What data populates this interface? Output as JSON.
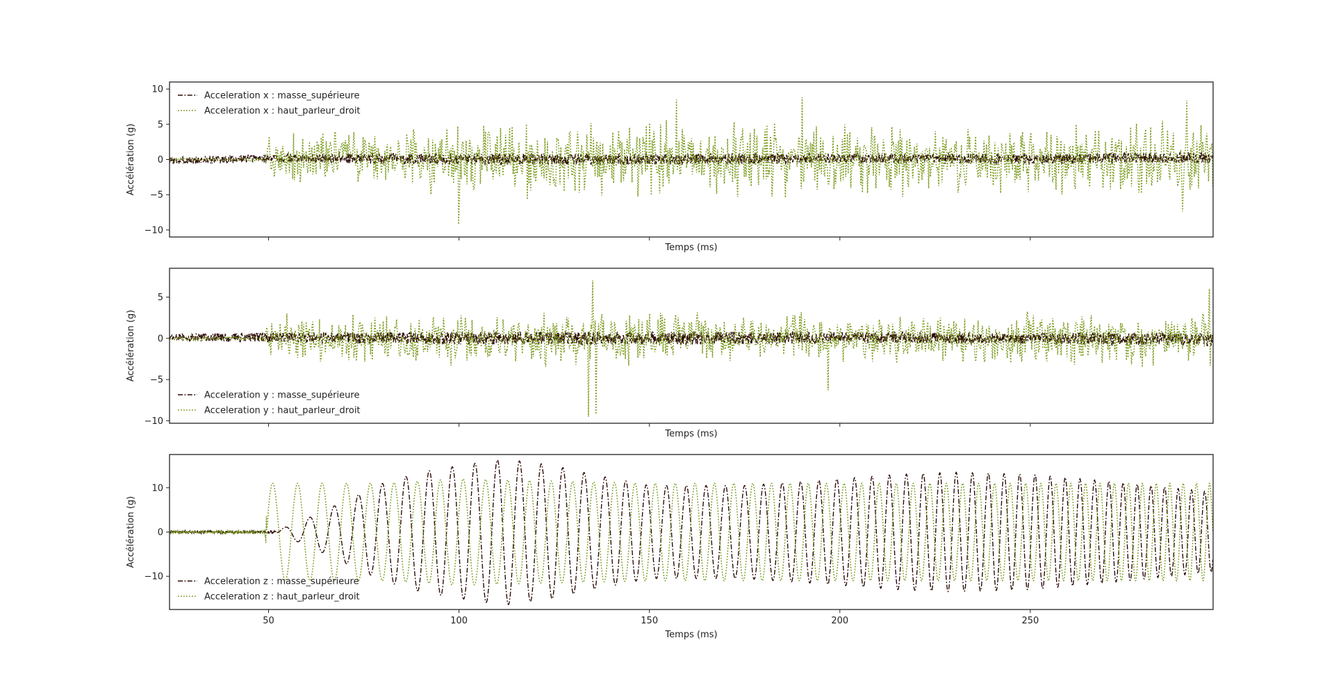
{
  "figure": {
    "background": "#ffffff",
    "axes_color": "#222222"
  },
  "series_styles": {
    "masse": {
      "color": "#2b0a05",
      "dash": "dash-dot"
    },
    "haut_parleur": {
      "color": "#7a9a1c",
      "dash": "dotted"
    }
  },
  "chart_data": [
    {
      "type": "line",
      "xlabel": "Temps (ms)",
      "ylabel": "Accélération (g)",
      "xlim": [
        24,
        298
      ],
      "ylim": [
        -11,
        11
      ],
      "yticks": [
        -10,
        -5,
        0,
        5,
        10
      ],
      "xticks": [
        50,
        100,
        150,
        200,
        250
      ],
      "show_xtick_labels": false,
      "legend_position": "top-left",
      "series": [
        {
          "name": "Acceleration x : masse_supérieure",
          "style": "masse",
          "x": [
            24,
            50,
            100,
            150,
            200,
            250,
            298
          ],
          "values": [
            -0.2,
            0.2,
            0.1,
            0.0,
            0.2,
            0.1,
            0.3
          ],
          "amplitude_envelope": [
            0.5,
            0.6,
            0.8,
            0.8,
            0.7,
            0.7,
            0.8
          ]
        },
        {
          "name": "Acceleration x : haut_parleur_droit",
          "style": "haut_parleur",
          "x": [
            24,
            49,
            50,
            100,
            150,
            200,
            250,
            298
          ],
          "values": [
            0,
            0,
            0,
            0,
            0,
            0,
            0,
            0
          ],
          "amplitude_envelope": [
            0.3,
            0.3,
            4.5,
            6.0,
            6.0,
            5.5,
            5.5,
            6.5
          ],
          "peaks": [
            {
              "x": 100,
              "y": -9.2
            },
            {
              "x": 157,
              "y": 8.5
            },
            {
              "x": 190,
              "y": 8.8
            },
            {
              "x": 291,
              "y": 8.4
            },
            {
              "x": 290,
              "y": -7.4
            }
          ]
        }
      ]
    },
    {
      "type": "line",
      "xlabel": "Temps (ms)",
      "ylabel": "Accélération (g)",
      "xlim": [
        24,
        298
      ],
      "ylim": [
        -10.3,
        8.5
      ],
      "yticks": [
        -10,
        -5,
        0,
        5
      ],
      "xticks": [
        50,
        100,
        150,
        200,
        250
      ],
      "show_xtick_labels": false,
      "legend_position": "bottom-left",
      "series": [
        {
          "name": "Acceleration y : masse_supérieure",
          "style": "masse",
          "x": [
            24,
            50,
            100,
            150,
            200,
            250,
            298
          ],
          "values": [
            0.1,
            0.1,
            0.0,
            0.0,
            0.1,
            0.0,
            -0.1
          ],
          "amplitude_envelope": [
            0.4,
            0.6,
            0.8,
            0.8,
            0.7,
            0.7,
            0.8
          ]
        },
        {
          "name": "Acceleration y : haut_parleur_droit",
          "style": "haut_parleur",
          "x": [
            24,
            49,
            50,
            100,
            150,
            200,
            250,
            298
          ],
          "values": [
            0,
            0,
            0,
            0,
            0,
            0,
            0,
            0
          ],
          "amplitude_envelope": [
            0.3,
            0.3,
            3.0,
            3.6,
            3.6,
            3.4,
            3.4,
            3.6
          ],
          "peaks": [
            {
              "x": 135,
              "y": 7.0
            },
            {
              "x": 134,
              "y": -9.5
            },
            {
              "x": 136,
              "y": -9.2
            },
            {
              "x": 297,
              "y": 6.0
            },
            {
              "x": 197,
              "y": -6.3
            }
          ]
        }
      ]
    },
    {
      "type": "line",
      "xlabel": "Temps (ms)",
      "ylabel": "Accélération (g)",
      "xlim": [
        24,
        298
      ],
      "ylim": [
        -17.5,
        17.5
      ],
      "yticks": [
        -10,
        0,
        10
      ],
      "xticks": [
        50,
        100,
        150,
        200,
        250
      ],
      "xtick_labels": [
        "50",
        "100",
        "150",
        "200",
        "250"
      ],
      "show_xtick_labels": true,
      "legend_position": "bottom-left",
      "series": [
        {
          "name": "Acceleration z : masse_supérieure",
          "style": "masse",
          "oscillation": {
            "onset": 52,
            "start_period_ms": 6.6,
            "end_period_ms": 3.4,
            "amplitude_x": [
              24,
              52,
              60,
              70,
              80,
              90,
              100,
              112,
              125,
              135,
              150,
              175,
              200,
              215,
              230,
              250,
              270,
              298
            ],
            "amplitude": [
              0.3,
              0.3,
              3,
              7,
              11,
              13.5,
              15,
              16.5,
              15,
              13,
              10.5,
              10.5,
              12,
              13,
              13.5,
              13,
              11.5,
              9
            ]
          }
        },
        {
          "name": "Acceleration z : haut_parleur_droit",
          "style": "haut_parleur",
          "oscillation": {
            "onset": 49.5,
            "start_period_ms": 6.6,
            "end_period_ms": 3.4,
            "amplitude_x": [
              24,
              49,
              50,
              60,
              80,
              100,
              150,
              200,
              250,
              298
            ],
            "amplitude": [
              0.3,
              0.3,
              11,
              11,
              11,
              12,
              11,
              11,
              11,
              11
            ]
          }
        }
      ]
    }
  ]
}
